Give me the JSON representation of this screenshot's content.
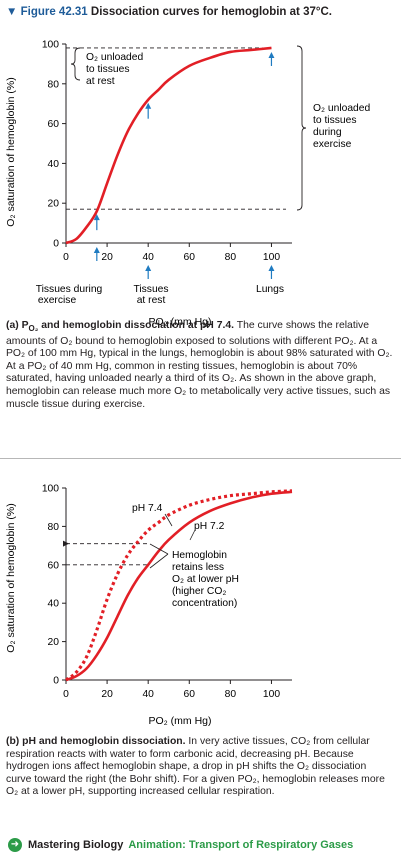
{
  "figure": {
    "label": "Figure 42.31",
    "title": "Dissociation curves for hemoglobin at 37°C."
  },
  "colors": {
    "curve": "#e21f26",
    "arrow": "#1f7bc1",
    "title_blue": "#1f5c99",
    "accent_green": "#2c9b48"
  },
  "panel_a": {
    "caption_lead": "(a) P",
    "caption_lead_sub": "O₂",
    "caption_lead_rest": " and hemoglobin dissociation at pH 7.4.",
    "caption_body": "The curve shows the relative amounts of O₂ bound to hemoglobin exposed to solutions with different PO₂. At a PO₂ of 100 mm Hg, typical in the lungs, hemoglobin is about 98% saturated with O₂. At a PO₂ of 40 mm Hg, common in resting tissues, hemoglobin is about 70% saturated, having unloaded nearly a third of its O₂. As shown in the above graph, hemoglobin can release much more O₂ to metabolically very active tissues, such as muscle tissue during exercise.",
    "annotations": {
      "rest_bracket": [
        "O₂ unloaded",
        "to tissues",
        "at rest"
      ],
      "exercise_bracket": [
        "O₂ unloaded",
        "to tissues",
        "during",
        "exercise"
      ],
      "tissues_exercise": [
        "Tissues during",
        "exercise"
      ],
      "tissues_rest": [
        "Tissues",
        "at rest"
      ],
      "lungs": "Lungs"
    }
  },
  "panel_b": {
    "caption_lead": "(b) pH and hemoglobin dissociation.",
    "caption_body": "In very active tissues, CO₂ from cellular respiration reacts with water to form carbonic acid, decreasing pH. Because hydrogen ions affect hemoglobin shape, a drop in pH shifts the O₂ dissociation curve toward the right (the Bohr shift). For a given PO₂, hemoglobin releases more O₂ at a lower pH, supporting increased cellular respiration.",
    "annotations": {
      "hemoglobin_note": [
        "Hemoglobin",
        "retains less",
        "O₂ at lower pH",
        "(higher CO₂",
        "concentration)"
      ]
    }
  },
  "footer": {
    "brand": "Mastering Biology",
    "link": "Animation: Transport of Respiratory Gases"
  },
  "chart_data": [
    {
      "type": "line",
      "xlabel": "PO₂ (mm Hg)",
      "ylabel": "O₂ saturation of hemoglobin (%)",
      "xlim": [
        0,
        110
      ],
      "ylim": [
        0,
        100
      ],
      "xticks": [
        0,
        20,
        40,
        60,
        80,
        100
      ],
      "yticks": [
        0,
        20,
        40,
        60,
        80,
        100
      ],
      "series": [
        {
          "style": "solid",
          "x": [
            0,
            5,
            10,
            15,
            20,
            25,
            30,
            35,
            40,
            45,
            50,
            60,
            70,
            80,
            90,
            100
          ],
          "y": [
            0,
            2,
            8,
            16,
            30,
            44,
            56,
            65,
            72,
            77,
            82,
            89,
            93,
            96,
            97,
            98
          ]
        }
      ],
      "reference_levels": {
        "y_rest": 98,
        "y_exercise": 17
      },
      "marked_x": [
        {
          "x": 15,
          "label": "Tissues during exercise"
        },
        {
          "x": 40,
          "label": "Tissues at rest"
        },
        {
          "x": 100,
          "label": "Lungs"
        }
      ]
    },
    {
      "type": "line",
      "xlabel": "PO₂ (mm Hg)",
      "ylabel": "O₂ saturation of hemoglobin (%)",
      "xlim": [
        0,
        110
      ],
      "ylim": [
        0,
        100
      ],
      "xticks": [
        0,
        20,
        40,
        60,
        80,
        100
      ],
      "yticks": [
        0,
        20,
        40,
        60,
        80,
        100
      ],
      "series": [
        {
          "name": "pH 7.4",
          "style": "dashed",
          "x": [
            0,
            5,
            10,
            15,
            20,
            25,
            30,
            35,
            40,
            45,
            50,
            60,
            70,
            80,
            90,
            100,
            110
          ],
          "y": [
            0,
            4,
            12,
            26,
            42,
            55,
            65,
            72,
            78,
            82,
            86,
            91,
            94,
            96,
            97,
            98,
            98.5
          ]
        },
        {
          "name": "pH 7.2",
          "style": "solid",
          "x": [
            0,
            5,
            10,
            15,
            20,
            25,
            30,
            35,
            40,
            45,
            50,
            60,
            70,
            80,
            90,
            100,
            110
          ],
          "y": [
            0,
            2,
            6,
            13,
            22,
            33,
            44,
            53,
            60,
            67,
            73,
            82,
            88,
            92,
            95,
            97,
            98
          ]
        }
      ],
      "comparison_levels": [
        71,
        60
      ]
    }
  ]
}
